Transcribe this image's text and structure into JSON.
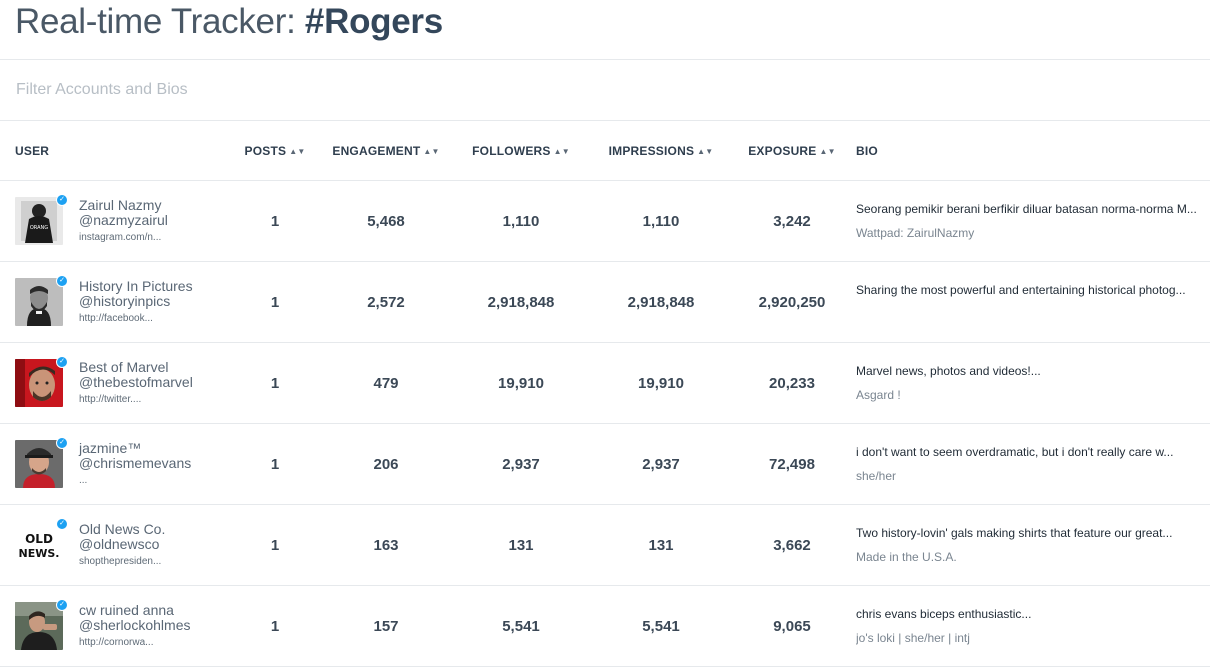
{
  "header": {
    "title_prefix": "Real-time Tracker: ",
    "title_tag": "#Rogers"
  },
  "filter": {
    "placeholder": "Filter Accounts and Bios",
    "value": ""
  },
  "columns": {
    "user": "USER",
    "posts": "POSTS",
    "engagement": "ENGAGEMENT",
    "followers": "FOLLOWERS",
    "impressions": "IMPRESSIONS",
    "exposure": "EXPOSURE",
    "bio": "BIO",
    "sort_icon": "sort-arrows-icon"
  },
  "colors": {
    "twitter_badge": "#1da1f2",
    "text_dark": "#2f3e4e",
    "divider": "#e6e9ec"
  },
  "rows": [
    {
      "name": "Zairul Nazmy",
      "handle": "@nazmyzairul",
      "link": "instagram.com/n...",
      "posts": "1",
      "engagement": "5,468",
      "followers": "1,110",
      "impressions": "1,110",
      "exposure": "3,242",
      "bio": "Seorang pemikir berani berfikir diluar batasan norma-norma M...",
      "bio_sub": "Wattpad: ZairulNazmy"
    },
    {
      "name": "History In Pictures",
      "handle": "@historyinpics",
      "link": "http://facebook...",
      "posts": "1",
      "engagement": "2,572",
      "followers": "2,918,848",
      "impressions": "2,918,848",
      "exposure": "2,920,250",
      "bio": "Sharing the most powerful and entertaining historical photog...",
      "bio_sub": ""
    },
    {
      "name": "Best of Marvel",
      "handle": "@thebestofmarvel",
      "link": "http://twitter....",
      "posts": "1",
      "engagement": "479",
      "followers": "19,910",
      "impressions": "19,910",
      "exposure": "20,233",
      "bio": "Marvel news, photos and videos!...",
      "bio_sub": "Asgard !"
    },
    {
      "name": "jazmine™",
      "handle": "@chrismemevans",
      "link": "...",
      "posts": "1",
      "engagement": "206",
      "followers": "2,937",
      "impressions": "2,937",
      "exposure": "72,498",
      "bio": "i don't want to seem overdramatic, but i don't really care w...",
      "bio_sub": "she/her"
    },
    {
      "name": "Old News Co.",
      "handle": "@oldnewsco",
      "link": "shopthepresiden...",
      "posts": "1",
      "engagement": "163",
      "followers": "131",
      "impressions": "131",
      "exposure": "3,662",
      "bio": "Two history-lovin' gals making shirts that feature our great...",
      "bio_sub": "Made in the U.S.A.",
      "logo_text": "OLD NEWS."
    },
    {
      "name": "cw ruined anna",
      "handle": "@sherlockohlmes",
      "link": "http://cornorwa...",
      "posts": "1",
      "engagement": "157",
      "followers": "5,541",
      "impressions": "5,541",
      "exposure": "9,065",
      "bio": "chris evans biceps enthusiastic...",
      "bio_sub": "jo's loki | she/her | intj"
    }
  ]
}
